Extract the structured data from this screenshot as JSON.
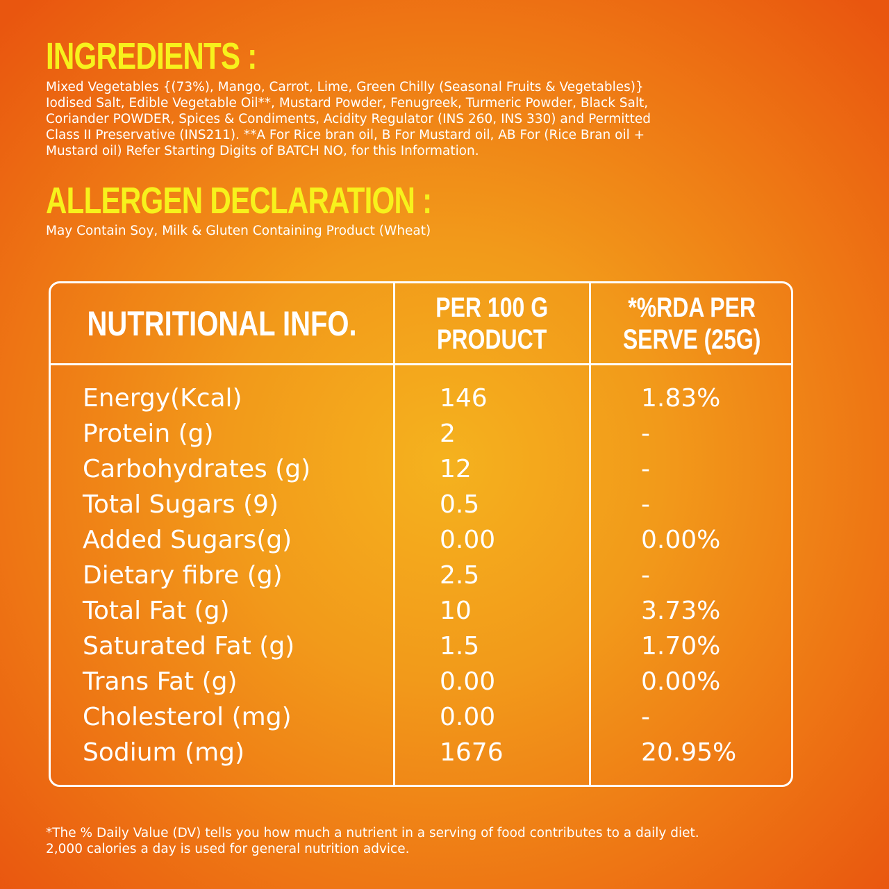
{
  "ingredients": {
    "title": "INGREDIENTS :",
    "text": "Mixed Vegetables {(73%), Mango, Carrot, Lime, Green  Chilly (Seasonal Fruits & Vegetables)}\nIodised Salt, Edible Vegetable Oil**, Mustard Powder, Fenugreek, Turmeric Powder, Black Salt,\nCoriander POWDER, Spices & Condiments, Acidity Regulator (INS 260, INS 330) and Permitted\nClass II Preservative (INS211).  **A For Rice bran oil, B For Mustard oil, AB For (Rice Bran oil +\nMustard oil) Refer Starting Digits of BATCH NO, for this Information."
  },
  "allergen": {
    "title": "ALLERGEN DECLARATION :",
    "text": "May Contain Soy, Milk & Gluten Containing Product (Wheat)"
  },
  "nutrition": {
    "headers": [
      "NUTRITIONAL INFO.",
      "PER 100 G\nPRODUCT",
      "*%RDA PER\nSERVE (25G)"
    ],
    "rows": [
      {
        "name": "Energy(Kcal)",
        "per100": "146",
        "rda": "1.83%"
      },
      {
        "name": "Protein (g)",
        "per100": "2",
        "rda": "-"
      },
      {
        "name": "Carbohydrates (g)",
        "per100": "12",
        "rda": "-"
      },
      {
        "name": "Total Sugars (9)",
        "per100": "0.5",
        "rda": "-"
      },
      {
        "name": "Added Sugars(g)",
        "per100": "0.00",
        "rda": "0.00%"
      },
      {
        "name": "Dietary fibre (g)",
        "per100": "2.5",
        "rda": "-"
      },
      {
        "name": "Total Fat (g)",
        "per100": "10",
        "rda": "3.73%"
      },
      {
        "name": "Saturated Fat (g)",
        "per100": "1.5",
        "rda": "1.70%"
      },
      {
        "name": "Trans Fat (g)",
        "per100": "0.00",
        "rda": "0.00%"
      },
      {
        "name": "Cholesterol (mg)",
        "per100": "0.00",
        "rda": "-"
      },
      {
        "name": "Sodium (mg)",
        "per100": "1676",
        "rda": "20.95%"
      }
    ]
  },
  "footnote": "*The % Daily Value (DV) tells you how much a nutrient in a serving of food contributes to a daily diet.\n2,000 calories a day is used for general nutrition advice.",
  "colors": {
    "heading": "#f7f21c",
    "text": "#ffffff",
    "background_center": "#f5b21e",
    "background_edge": "#e9560f"
  }
}
